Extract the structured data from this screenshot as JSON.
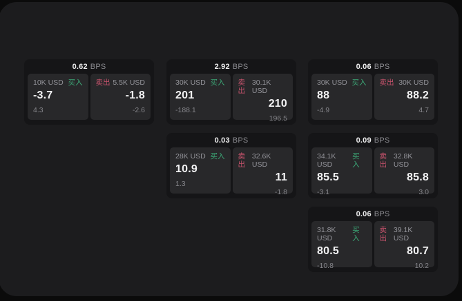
{
  "labels": {
    "bps_unit": "BPS",
    "buy": "买入",
    "sell": "卖出"
  },
  "colors": {
    "page_bg": "#0b0b0b",
    "panel_bg": "#1c1c1e",
    "card_bg": "#151517",
    "pane_bg": "#28282a",
    "buy_green": "#3ca877",
    "sell_red": "#c9536d"
  },
  "cards": [
    {
      "bps": "0.62",
      "buy": {
        "amount": "10K USD",
        "price": "-3.7",
        "change": "4.3"
      },
      "sell": {
        "amount": "5.5K USD",
        "price": "-1.8",
        "change": "-2.6"
      }
    },
    {
      "bps": "2.92",
      "buy": {
        "amount": "30K USD",
        "price": "201",
        "change": "-188.1"
      },
      "sell": {
        "amount": "30.1K USD",
        "price": "210",
        "change": "196.5"
      }
    },
    {
      "bps": "0.06",
      "buy": {
        "amount": "30K USD",
        "price": "88",
        "change": "-4.9"
      },
      "sell": {
        "amount": "30K USD",
        "price": "88.2",
        "change": "4.7"
      }
    },
    {
      "bps": "0.03",
      "buy": {
        "amount": "28K USD",
        "price": "10.9",
        "change": "1.3"
      },
      "sell": {
        "amount": "32.6K USD",
        "price": "11",
        "change": "-1.8"
      }
    },
    {
      "bps": "0.09",
      "buy": {
        "amount": "34.1K USD",
        "price": "85.5",
        "change": "-3.1"
      },
      "sell": {
        "amount": "32.8K USD",
        "price": "85.8",
        "change": "3.0"
      }
    },
    {
      "bps": "0.06",
      "buy": {
        "amount": "31.8K USD",
        "price": "80.5",
        "change": "-10.8"
      },
      "sell": {
        "amount": "39.1K USD",
        "price": "80.7",
        "change": "10.2"
      }
    }
  ]
}
